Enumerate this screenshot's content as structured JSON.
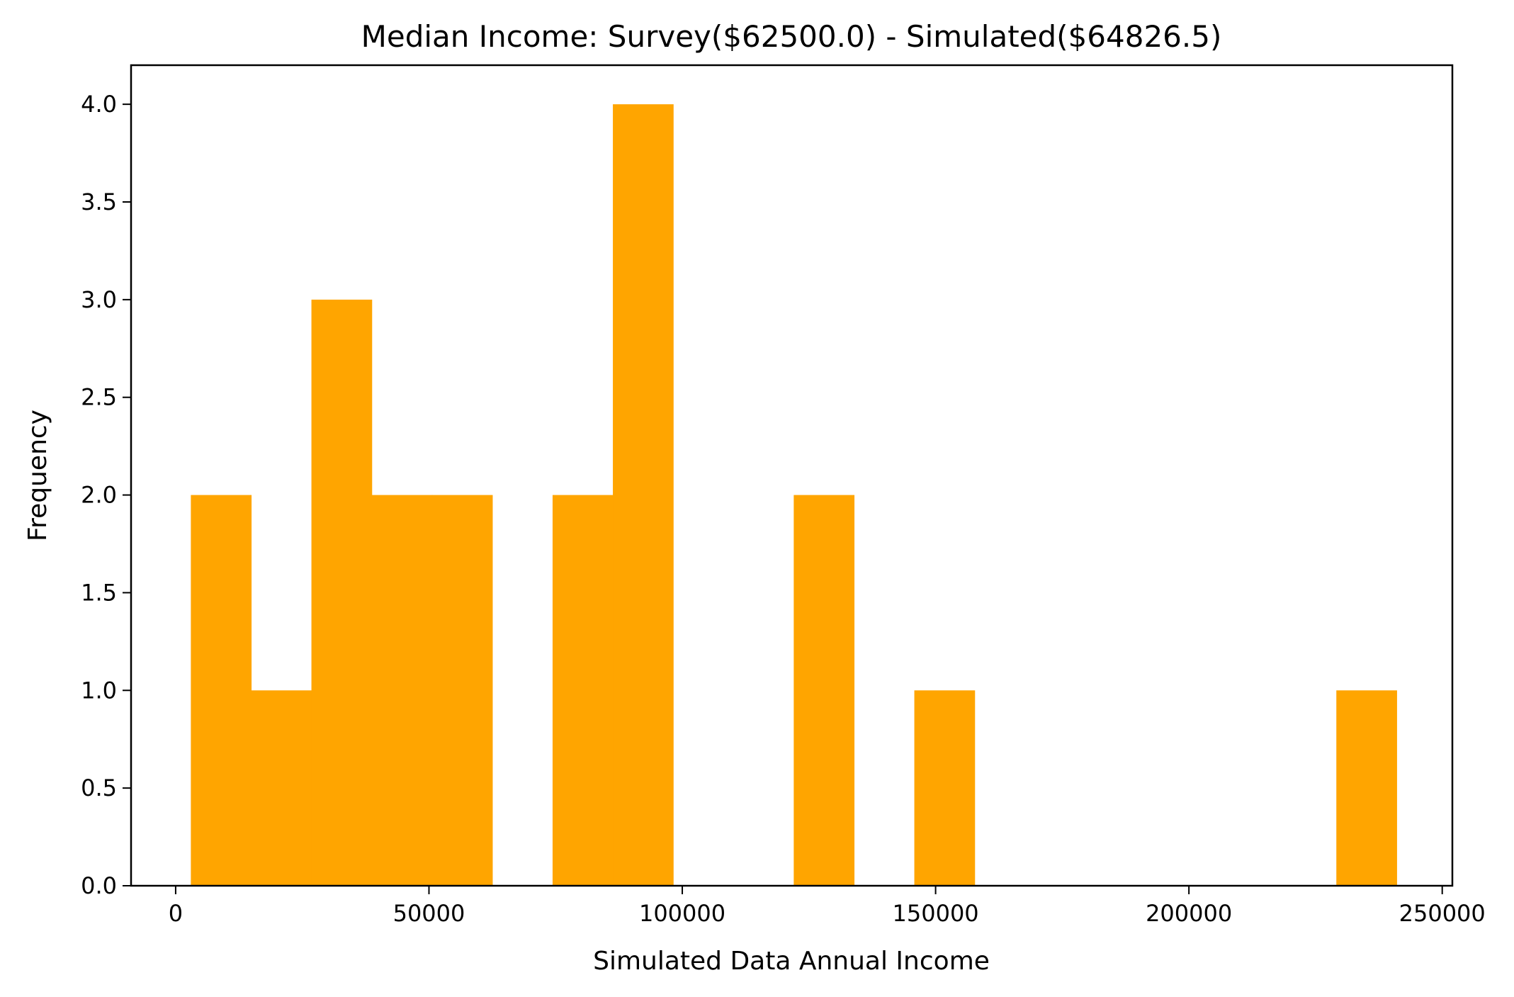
{
  "chart_data": {
    "type": "bar",
    "subtype": "histogram",
    "title": "Median Income: Survey($62500.0) - Simulated($64826.5)",
    "xlabel": "Simulated Data Annual Income",
    "ylabel": "Frequency",
    "bar_color": "#FFA500",
    "xlim": [
      -8800,
      252000
    ],
    "ylim": [
      0,
      4.2
    ],
    "x_ticks": [
      0,
      50000,
      100000,
      150000,
      200000,
      250000
    ],
    "x_tick_labels": [
      "0",
      "50000",
      "100000",
      "150000",
      "200000",
      "250000"
    ],
    "y_ticks": [
      0,
      0.5,
      1,
      1.5,
      2,
      2.5,
      3,
      3.5,
      4
    ],
    "y_tick_labels": [
      "0.0",
      "0.5",
      "1.0",
      "1.5",
      "2.0",
      "2.5",
      "3.0",
      "3.5",
      "4.0"
    ],
    "grid": false,
    "legend": "none",
    "bins": [
      {
        "x0": 3000,
        "x1": 14900,
        "count": 2
      },
      {
        "x0": 14900,
        "x1": 26800,
        "count": 1
      },
      {
        "x0": 26800,
        "x1": 38700,
        "count": 3
      },
      {
        "x0": 38700,
        "x1": 50600,
        "count": 2
      },
      {
        "x0": 50600,
        "x1": 62500,
        "count": 2
      },
      {
        "x0": 62500,
        "x1": 74400,
        "count": 0
      },
      {
        "x0": 74400,
        "x1": 86300,
        "count": 2
      },
      {
        "x0": 86300,
        "x1": 98200,
        "count": 4
      },
      {
        "x0": 98200,
        "x1": 110100,
        "count": 0
      },
      {
        "x0": 110100,
        "x1": 122000,
        "count": 0
      },
      {
        "x0": 122000,
        "x1": 133900,
        "count": 2
      },
      {
        "x0": 133900,
        "x1": 145800,
        "count": 0
      },
      {
        "x0": 145800,
        "x1": 157700,
        "count": 1
      },
      {
        "x0": 157700,
        "x1": 169600,
        "count": 0
      },
      {
        "x0": 169600,
        "x1": 181500,
        "count": 0
      },
      {
        "x0": 181500,
        "x1": 193400,
        "count": 0
      },
      {
        "x0": 193400,
        "x1": 205300,
        "count": 0
      },
      {
        "x0": 205300,
        "x1": 217200,
        "count": 0
      },
      {
        "x0": 217200,
        "x1": 229100,
        "count": 0
      },
      {
        "x0": 229100,
        "x1": 241000,
        "count": 1
      }
    ]
  }
}
